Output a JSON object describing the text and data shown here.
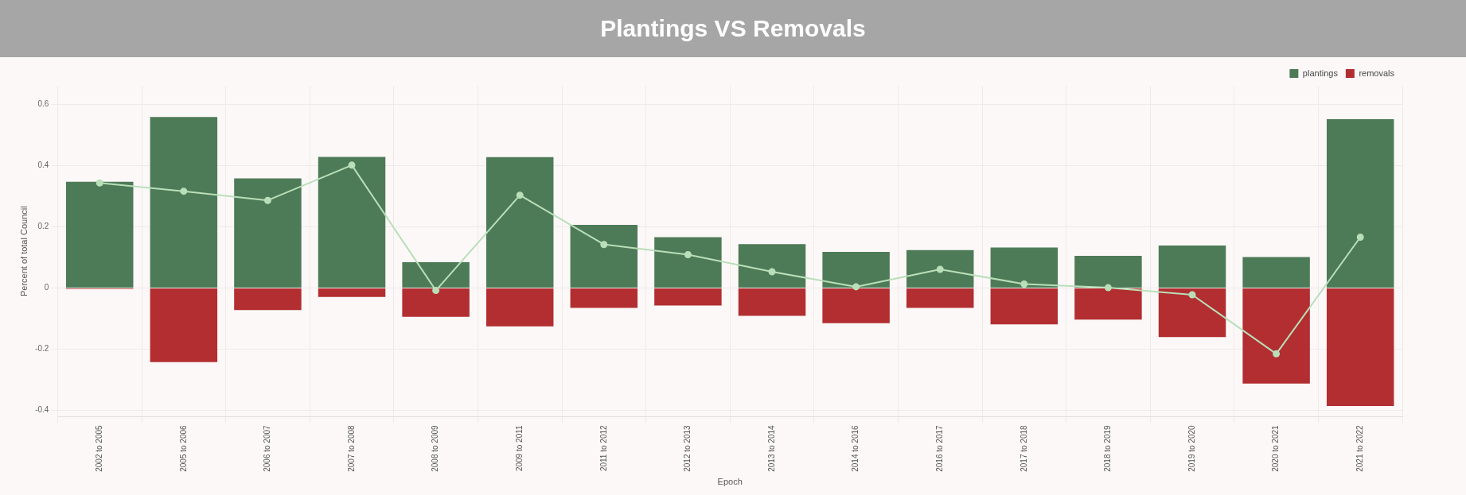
{
  "chart_data": {
    "type": "bar",
    "title": "Plantings VS Removals",
    "xlabel": "Epoch",
    "ylabel": "Percent of total Council",
    "categories": [
      "2002 to 2005",
      "2005 to 2006",
      "2006 to 2007",
      "2007 to 2008",
      "2008 to 2009",
      "2009 to 2011",
      "2011 to 2012",
      "2012 to 2013",
      "2013 to 2014",
      "2014 to 2016",
      "2016 to 2017",
      "2017 to 2018",
      "2018 to 2019",
      "2019 to 2020",
      "2020 to 2021",
      "2021 to 2022"
    ],
    "series": [
      {
        "name": "plantings",
        "color": "#4e7b57",
        "values": [
          0.347,
          0.558,
          0.358,
          0.428,
          0.084,
          0.427,
          0.206,
          0.166,
          0.143,
          0.118,
          0.124,
          0.132,
          0.105,
          0.139,
          0.101,
          0.551
        ]
      },
      {
        "name": "removals",
        "color": "#b22e30",
        "values": [
          -0.003,
          -0.242,
          -0.072,
          -0.029,
          -0.094,
          -0.125,
          -0.065,
          -0.057,
          -0.091,
          -0.115,
          -0.065,
          -0.119,
          -0.103,
          -0.16,
          -0.312,
          -0.385
        ]
      },
      {
        "type": "line",
        "color": "#b9dfb9",
        "values": [
          0.343,
          0.316,
          0.286,
          0.401,
          -0.008,
          0.303,
          0.142,
          0.109,
          0.053,
          0.004,
          0.061,
          0.013,
          0.001,
          -0.022,
          -0.215,
          0.166
        ]
      }
    ],
    "stacked": true,
    "ylim": [
      -0.42,
      0.66
    ],
    "yticks": [
      -0.4,
      -0.2,
      0,
      0.2,
      0.4,
      0.6
    ],
    "grid": true,
    "legend": "top right",
    "marker": "circle",
    "line_style": "solid"
  }
}
